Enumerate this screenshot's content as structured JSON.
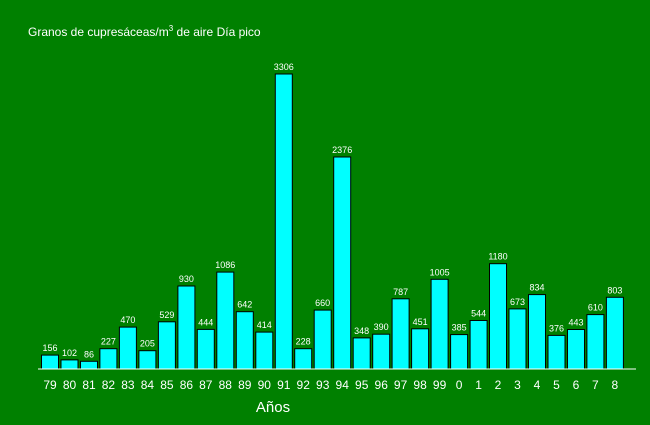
{
  "chart_data": {
    "type": "bar",
    "title_main": "Granos de cupresáceas/m",
    "title_sup": "3",
    "title_rest": " de aire Día pico",
    "xlabel": "Años",
    "ylabel": "",
    "ylim": [
      0,
      3306
    ],
    "grid": false,
    "legend": "none",
    "categories": [
      "79",
      "80",
      "81",
      "82",
      "83",
      "84",
      "85",
      "86",
      "87",
      "88",
      "89",
      "90",
      "91",
      "92",
      "93",
      "94",
      "95",
      "96",
      "97",
      "98",
      "99",
      "0",
      "1",
      "2",
      "3",
      "4",
      "5",
      "6",
      "7",
      "8"
    ],
    "values": [
      156,
      102,
      86,
      227,
      470,
      205,
      529,
      930,
      444,
      1086,
      642,
      414,
      3306,
      228,
      660,
      2376,
      348,
      390,
      787,
      451,
      1005,
      385,
      544,
      1180,
      673,
      834,
      376,
      443,
      610,
      803
    ],
    "colors": {
      "background": "#008000",
      "bar_fill": "#00ffff",
      "bar_stroke": "#000000",
      "text": "#ffffff"
    }
  }
}
